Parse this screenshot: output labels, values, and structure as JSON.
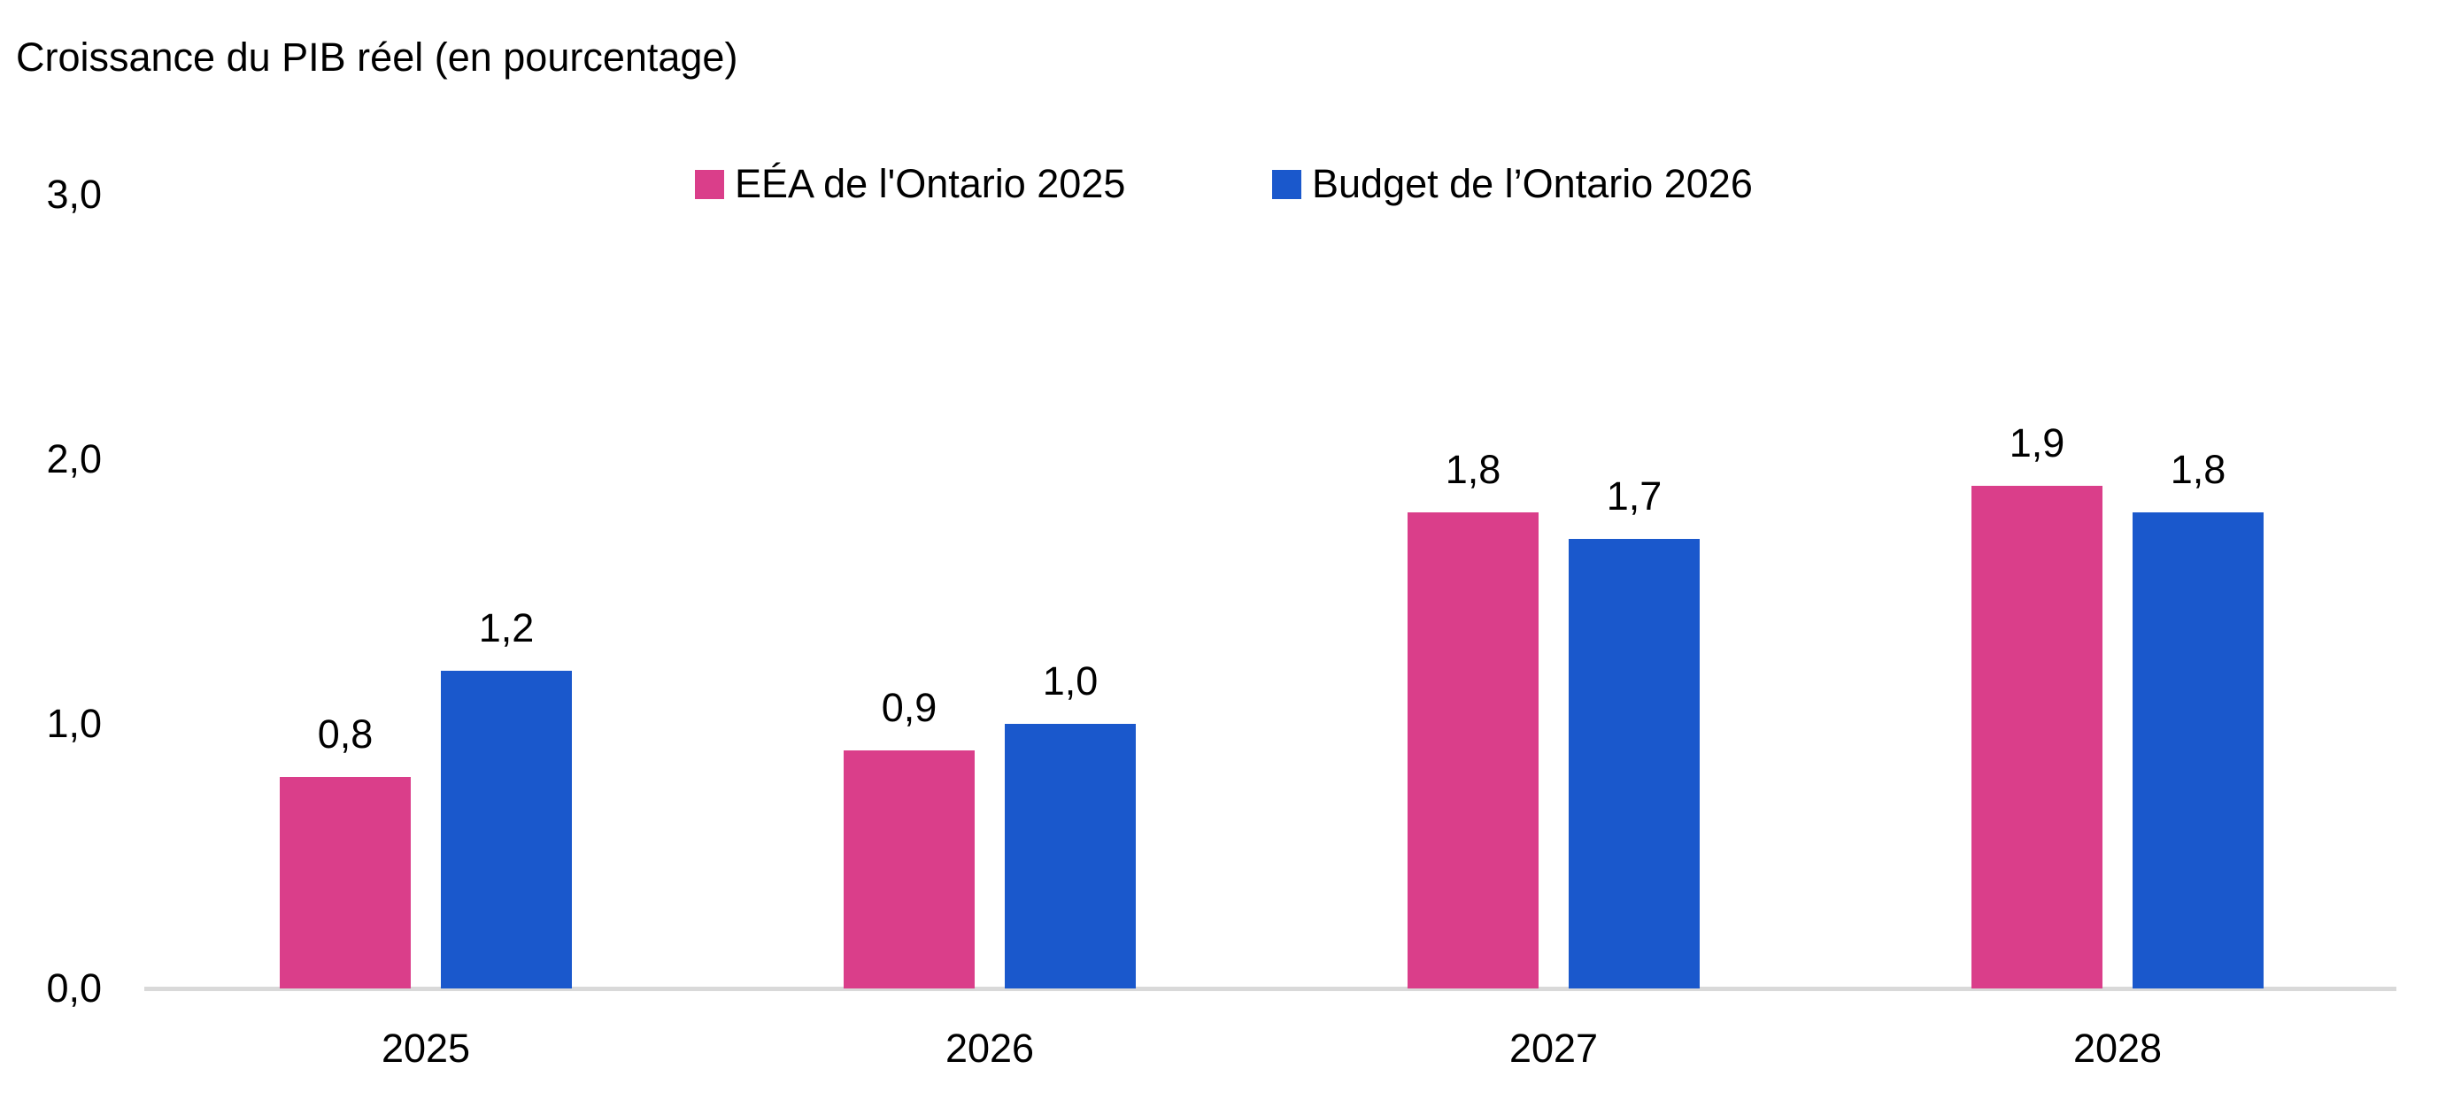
{
  "chart_data": {
    "type": "bar",
    "title": "Croissance du PIB réel (en pourcentage)",
    "categories": [
      "2025",
      "2026",
      "2027",
      "2028"
    ],
    "series": [
      {
        "name": "EÉA de l'Ontario 2025",
        "color": "#da3e8a",
        "values": [
          0.8,
          0.9,
          1.8,
          1.9
        ],
        "labels": [
          "0,8",
          "0,9",
          "1,8",
          "1,9"
        ]
      },
      {
        "name": "Budget de l’Ontario 2026",
        "color": "#1a58cc",
        "values": [
          1.2,
          1.0,
          1.7,
          1.8
        ],
        "labels": [
          "1,2",
          "1,0",
          "1,7",
          "1,8"
        ]
      }
    ],
    "xlabel": "",
    "ylabel": "",
    "ylim": [
      0,
      3
    ],
    "yticks": [
      0,
      1,
      2,
      3
    ],
    "ytick_labels": [
      "0,0",
      "1,0",
      "2,0",
      "3,0"
    ],
    "grid": false,
    "legend_position": "top",
    "axis_line_color": "#d9d9d9",
    "text_color": "#000000"
  }
}
